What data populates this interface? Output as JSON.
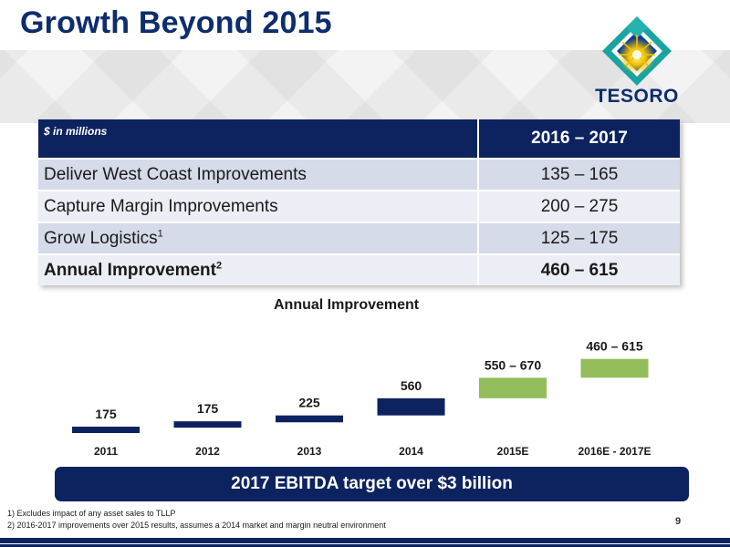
{
  "title": "Growth Beyond 2015",
  "logo": {
    "text": "TESORO",
    "colors": {
      "teal": "#1aa3a0",
      "blue": "#0d3f8f",
      "gold": "#f3c200"
    }
  },
  "table": {
    "header": {
      "unit_label": "$ in millions",
      "period": "2016 – 2017"
    },
    "rows": [
      {
        "label": "Deliver West Coast Improvements",
        "sup": "",
        "value": "135 – 165"
      },
      {
        "label": "Capture Margin Improvements",
        "sup": "",
        "value": "200 – 275"
      },
      {
        "label": "Grow Logistics",
        "sup": "1",
        "value": "125 – 175"
      },
      {
        "label": "Annual Improvement",
        "sup": "2",
        "value": "460 – 615"
      }
    ]
  },
  "chart_data": {
    "type": "bar",
    "title": "Annual Improvement",
    "categories": [
      "2011",
      "2012",
      "2013",
      "2014",
      "2015E",
      "2016E - 2017E"
    ],
    "labels": [
      "175",
      "175",
      "225",
      "560",
      "550 – 670",
      "460 – 615"
    ],
    "ranges": [
      [
        0,
        175
      ],
      [
        175,
        350
      ],
      [
        350,
        575
      ],
      [
        575,
        1135
      ],
      [
        1135,
        1805
      ],
      [
        1805,
        2420
      ]
    ],
    "colors": {
      "actual": "#0d2360",
      "estimate": "#93bd5a"
    },
    "kinds": [
      "actual",
      "actual",
      "actual",
      "actual",
      "estimate",
      "estimate"
    ]
  },
  "banner": "2017 EBITDA target over $3 billion",
  "footnotes": [
    "1) Excludes impact of any asset sales to TLLP",
    "2) 2016-2017 improvements over 2015 results, assumes a 2014 market and margin neutral environment"
  ],
  "page_number": "9"
}
